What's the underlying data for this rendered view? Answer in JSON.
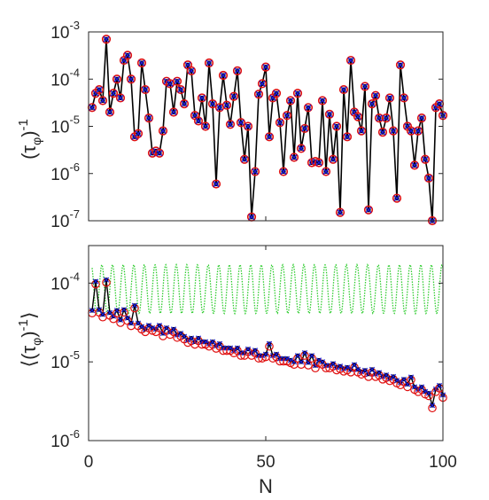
{
  "chart_data": [
    {
      "type": "scatter",
      "panel": "top",
      "ylabel_parts": [
        "(τ",
        "φ",
        ")",
        "-1"
      ],
      "ylabel": "(τ_φ)^-1",
      "yscale": "log",
      "ylim": [
        1e-07,
        0.001
      ],
      "yticks": [
        {
          "value": 1e-07,
          "base": "10",
          "exp": "-7"
        },
        {
          "value": 1e-06,
          "base": "10",
          "exp": "-6"
        },
        {
          "value": 1e-05,
          "base": "10",
          "exp": "-5"
        },
        {
          "value": 0.0001,
          "base": "10",
          "exp": "-4"
        },
        {
          "value": 0.001,
          "base": "10",
          "exp": "-3"
        }
      ],
      "xlim": [
        0,
        100
      ],
      "grid": false,
      "markers": {
        "line": "#000000",
        "circle": "#e01010",
        "cross": "#1a1ad0"
      },
      "x": [
        1,
        2,
        3,
        4,
        5,
        6,
        7,
        8,
        9,
        10,
        11,
        12,
        13,
        14,
        15,
        16,
        17,
        18,
        19,
        20,
        21,
        22,
        23,
        24,
        25,
        26,
        27,
        28,
        29,
        30,
        31,
        32,
        33,
        34,
        35,
        36,
        37,
        38,
        39,
        40,
        41,
        42,
        43,
        44,
        45,
        46,
        47,
        48,
        49,
        50,
        51,
        52,
        53,
        54,
        55,
        56,
        57,
        58,
        59,
        60,
        61,
        62,
        63,
        64,
        65,
        66,
        67,
        68,
        69,
        70,
        71,
        72,
        73,
        74,
        75,
        76,
        77,
        78,
        79,
        80,
        81,
        82,
        83,
        84,
        85,
        86,
        87,
        88,
        89,
        90,
        91,
        92,
        93,
        94,
        95,
        96,
        97,
        98,
        99,
        100
      ],
      "series": [
        {
          "marker": "dot",
          "values": [
            2.5e-05,
            5e-05,
            6e-05,
            3.5e-05,
            0.0007,
            2e-05,
            5e-05,
            0.0001,
            4e-05,
            0.00025,
            0.00032,
            0.0001,
            6e-06,
            7e-06,
            0.00022,
            6e-05,
            1.5e-05,
            2.7e-06,
            3e-06,
            2.7e-06,
            8e-06,
            9e-05,
            8e-05,
            2e-05,
            9e-05,
            6e-05,
            3e-05,
            0.0002,
            0.00015,
            1.7e-05,
            1.3e-05,
            4e-05,
            1e-05,
            0.00022,
            3e-05,
            6e-07,
            2.5e-05,
            0.00012,
            2.8e-05,
            1.1e-05,
            4.3e-05,
            0.00015,
            1.2e-05,
            2e-06,
            1e-05,
            1.2e-07,
            1.1e-06,
            4.8e-05,
            8e-05,
            0.00018,
            6e-06,
            4e-05,
            5e-05,
            1.2e-05,
            1.1e-06,
            1.7e-05,
            3.5e-05,
            2.2e-06,
            5e-05,
            3.4e-06,
            9e-06,
            2.5e-05,
            1.7e-06,
            1.8e-06,
            1.7e-06,
            3.5e-05,
            1.1e-06,
            1.8e-05,
            2e-06,
            1e-05,
            1.5e-07,
            6e-05,
            6e-06,
            0.00025,
            2e-05,
            1.6e-05,
            8e-06,
            7e-05,
            1.7e-07,
            3e-05,
            4.5e-05,
            1.5e-05,
            7.5e-06,
            1.5e-05,
            4e-05,
            8e-06,
            3e-07,
            0.0002,
            4e-05,
            1e-05,
            8e-06,
            1.5e-06,
            8e-06,
            1.5e-05,
            2e-06,
            8e-07,
            1e-07,
            2.5e-05,
            3e-05,
            1.7e-05
          ]
        }
      ]
    },
    {
      "type": "line",
      "panel": "bottom",
      "ylabel_parts": [
        "⟨(τ",
        "φ",
        ")",
        "-1",
        "⟩"
      ],
      "ylabel": "<(τ_φ)^-1>",
      "xlabel": "N",
      "yscale": "log",
      "ylim": [
        1e-06,
        0.0003
      ],
      "yticks": [
        {
          "value": 1e-06,
          "base": "10",
          "exp": "-6"
        },
        {
          "value": 1e-05,
          "base": "10",
          "exp": "-5"
        },
        {
          "value": 0.0001,
          "base": "10",
          "exp": "-4"
        }
      ],
      "xlim": [
        0,
        100
      ],
      "xticks": [
        "0",
        "50",
        "100"
      ],
      "grid": false,
      "green_dotted": {
        "color": "#2ecc2e",
        "base": 8.4e-05,
        "amplitude_log10": 0.31,
        "period": 3.0,
        "note": "oscillating envelope"
      },
      "x": [
        1,
        2,
        3,
        4,
        5,
        6,
        7,
        8,
        9,
        10,
        11,
        12,
        13,
        14,
        15,
        16,
        17,
        18,
        19,
        20,
        21,
        22,
        23,
        24,
        25,
        26,
        27,
        28,
        29,
        30,
        31,
        32,
        33,
        34,
        35,
        36,
        37,
        38,
        39,
        40,
        41,
        42,
        43,
        44,
        45,
        46,
        47,
        48,
        49,
        50,
        51,
        52,
        53,
        54,
        55,
        56,
        57,
        58,
        59,
        60,
        61,
        62,
        63,
        64,
        65,
        66,
        67,
        68,
        69,
        70,
        71,
        72,
        73,
        74,
        75,
        76,
        77,
        78,
        79,
        80,
        81,
        82,
        83,
        84,
        85,
        86,
        87,
        88,
        89,
        90,
        91,
        92,
        93,
        94,
        95,
        96,
        97,
        98,
        99,
        100
      ],
      "series": [
        {
          "name": "",
          "values": [
            4.5e-05,
            0.000105,
            4.6e-05,
            4e-05,
            0.00011,
            4.2e-05,
            3.8e-05,
            4.5e-05,
            3.4e-05,
            4.6e-05,
            3.6e-05,
            3.1e-05,
            5.2e-05,
            3.1e-05,
            2.8e-05,
            2.6e-05,
            2.9e-05,
            2.7e-05,
            2.6e-05,
            2.9e-05,
            2.3e-05,
            2.7e-05,
            2.4e-05,
            2.6e-05,
            2.2e-05,
            2.3e-05,
            2.1e-05,
            1.9e-05,
            2e-05,
            1.8e-05,
            2e-05,
            1.8e-05,
            1.8e-05,
            1.7e-05,
            1.8e-05,
            1.6e-05,
            1.7e-05,
            1.5e-05,
            1.5e-05,
            1.5e-05,
            1.4e-05,
            1.5e-05,
            1.3e-05,
            1.3e-05,
            1.45e-05,
            1.3e-05,
            1.4e-05,
            1.2e-05,
            1.2e-05,
            1.25e-05,
            1.7e-05,
            1.2e-05,
            1.25e-05,
            1.1e-05,
            1.1e-05,
            1.1e-05,
            1.05e-05,
            1e-05,
            1.2e-05,
            1e-05,
            1.3e-05,
            9.8e-06,
            1.2e-05,
            9e-06,
            1.05e-05,
            1e-05,
            9e-06,
            9e-06,
            9.5e-06,
            8.5e-06,
            8.8e-06,
            8.2e-06,
            8.5e-06,
            8e-06,
            9.2e-06,
            8e-06,
            7.5e-06,
            7.8e-06,
            7e-06,
            8e-06,
            7e-06,
            7.3e-06,
            6.5e-06,
            6.8e-06,
            6.2e-06,
            6.5e-06,
            5.8e-06,
            5.5e-06,
            6e-06,
            5.2e-06,
            6.4e-06,
            4.8e-06,
            4.5e-06,
            4.8e-06,
            4.2e-06,
            4e-06,
            2.8e-06,
            4.5e-06,
            5e-06,
            3.8e-06
          ]
        }
      ]
    }
  ]
}
